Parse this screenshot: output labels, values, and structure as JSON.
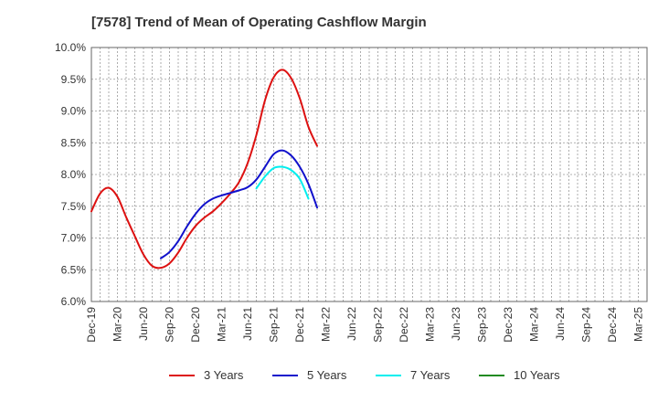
{
  "chart_data": {
    "type": "line",
    "title": "[7578]  Trend of Mean of Operating Cashflow Margin",
    "xlabel": "",
    "ylabel": "",
    "ylim": [
      6.0,
      10.0
    ],
    "y_ticks": [
      "6.0%",
      "6.5%",
      "7.0%",
      "7.5%",
      "8.0%",
      "8.5%",
      "9.0%",
      "9.5%",
      "10.0%"
    ],
    "y_tick_values": [
      6.0,
      6.5,
      7.0,
      7.5,
      8.0,
      8.5,
      9.0,
      9.5,
      10.0
    ],
    "x_ticks": [
      "Dec-19",
      "Mar-20",
      "Jun-20",
      "Sep-20",
      "Dec-20",
      "Mar-21",
      "Jun-21",
      "Sep-21",
      "Dec-21",
      "Mar-22",
      "Jun-22",
      "Sep-22",
      "Dec-22",
      "Mar-23",
      "Jun-23",
      "Sep-23",
      "Dec-23",
      "Mar-24",
      "Jun-24",
      "Sep-24",
      "Dec-24",
      "Mar-25"
    ],
    "grid": true,
    "legend_position": "bottom",
    "series": [
      {
        "name": "3 Years",
        "color": "#dd1111",
        "start_index": 0,
        "values": [
          7.42,
          7.7,
          7.79,
          7.65,
          7.33,
          7.03,
          6.74,
          6.56,
          6.53,
          6.6,
          6.77,
          7.0,
          7.19,
          7.32,
          7.42,
          7.55,
          7.7,
          7.88,
          8.18,
          8.62,
          9.17,
          9.53,
          9.65,
          9.52,
          9.2,
          8.75,
          8.45
        ]
      },
      {
        "name": "5 Years",
        "color": "#1111cc",
        "start_index": 8,
        "values": [
          6.68,
          6.78,
          6.95,
          7.18,
          7.38,
          7.53,
          7.62,
          7.67,
          7.71,
          7.75,
          7.8,
          7.92,
          8.12,
          8.32,
          8.38,
          8.3,
          8.12,
          7.85,
          7.48
        ]
      },
      {
        "name": "7 Years",
        "color": "#00eeee",
        "start_index": 19,
        "values": [
          7.78,
          7.97,
          8.1,
          8.12,
          8.07,
          7.93,
          7.62
        ]
      },
      {
        "name": "10 Years",
        "color": "#228B22",
        "start_index": null,
        "values": []
      }
    ]
  }
}
